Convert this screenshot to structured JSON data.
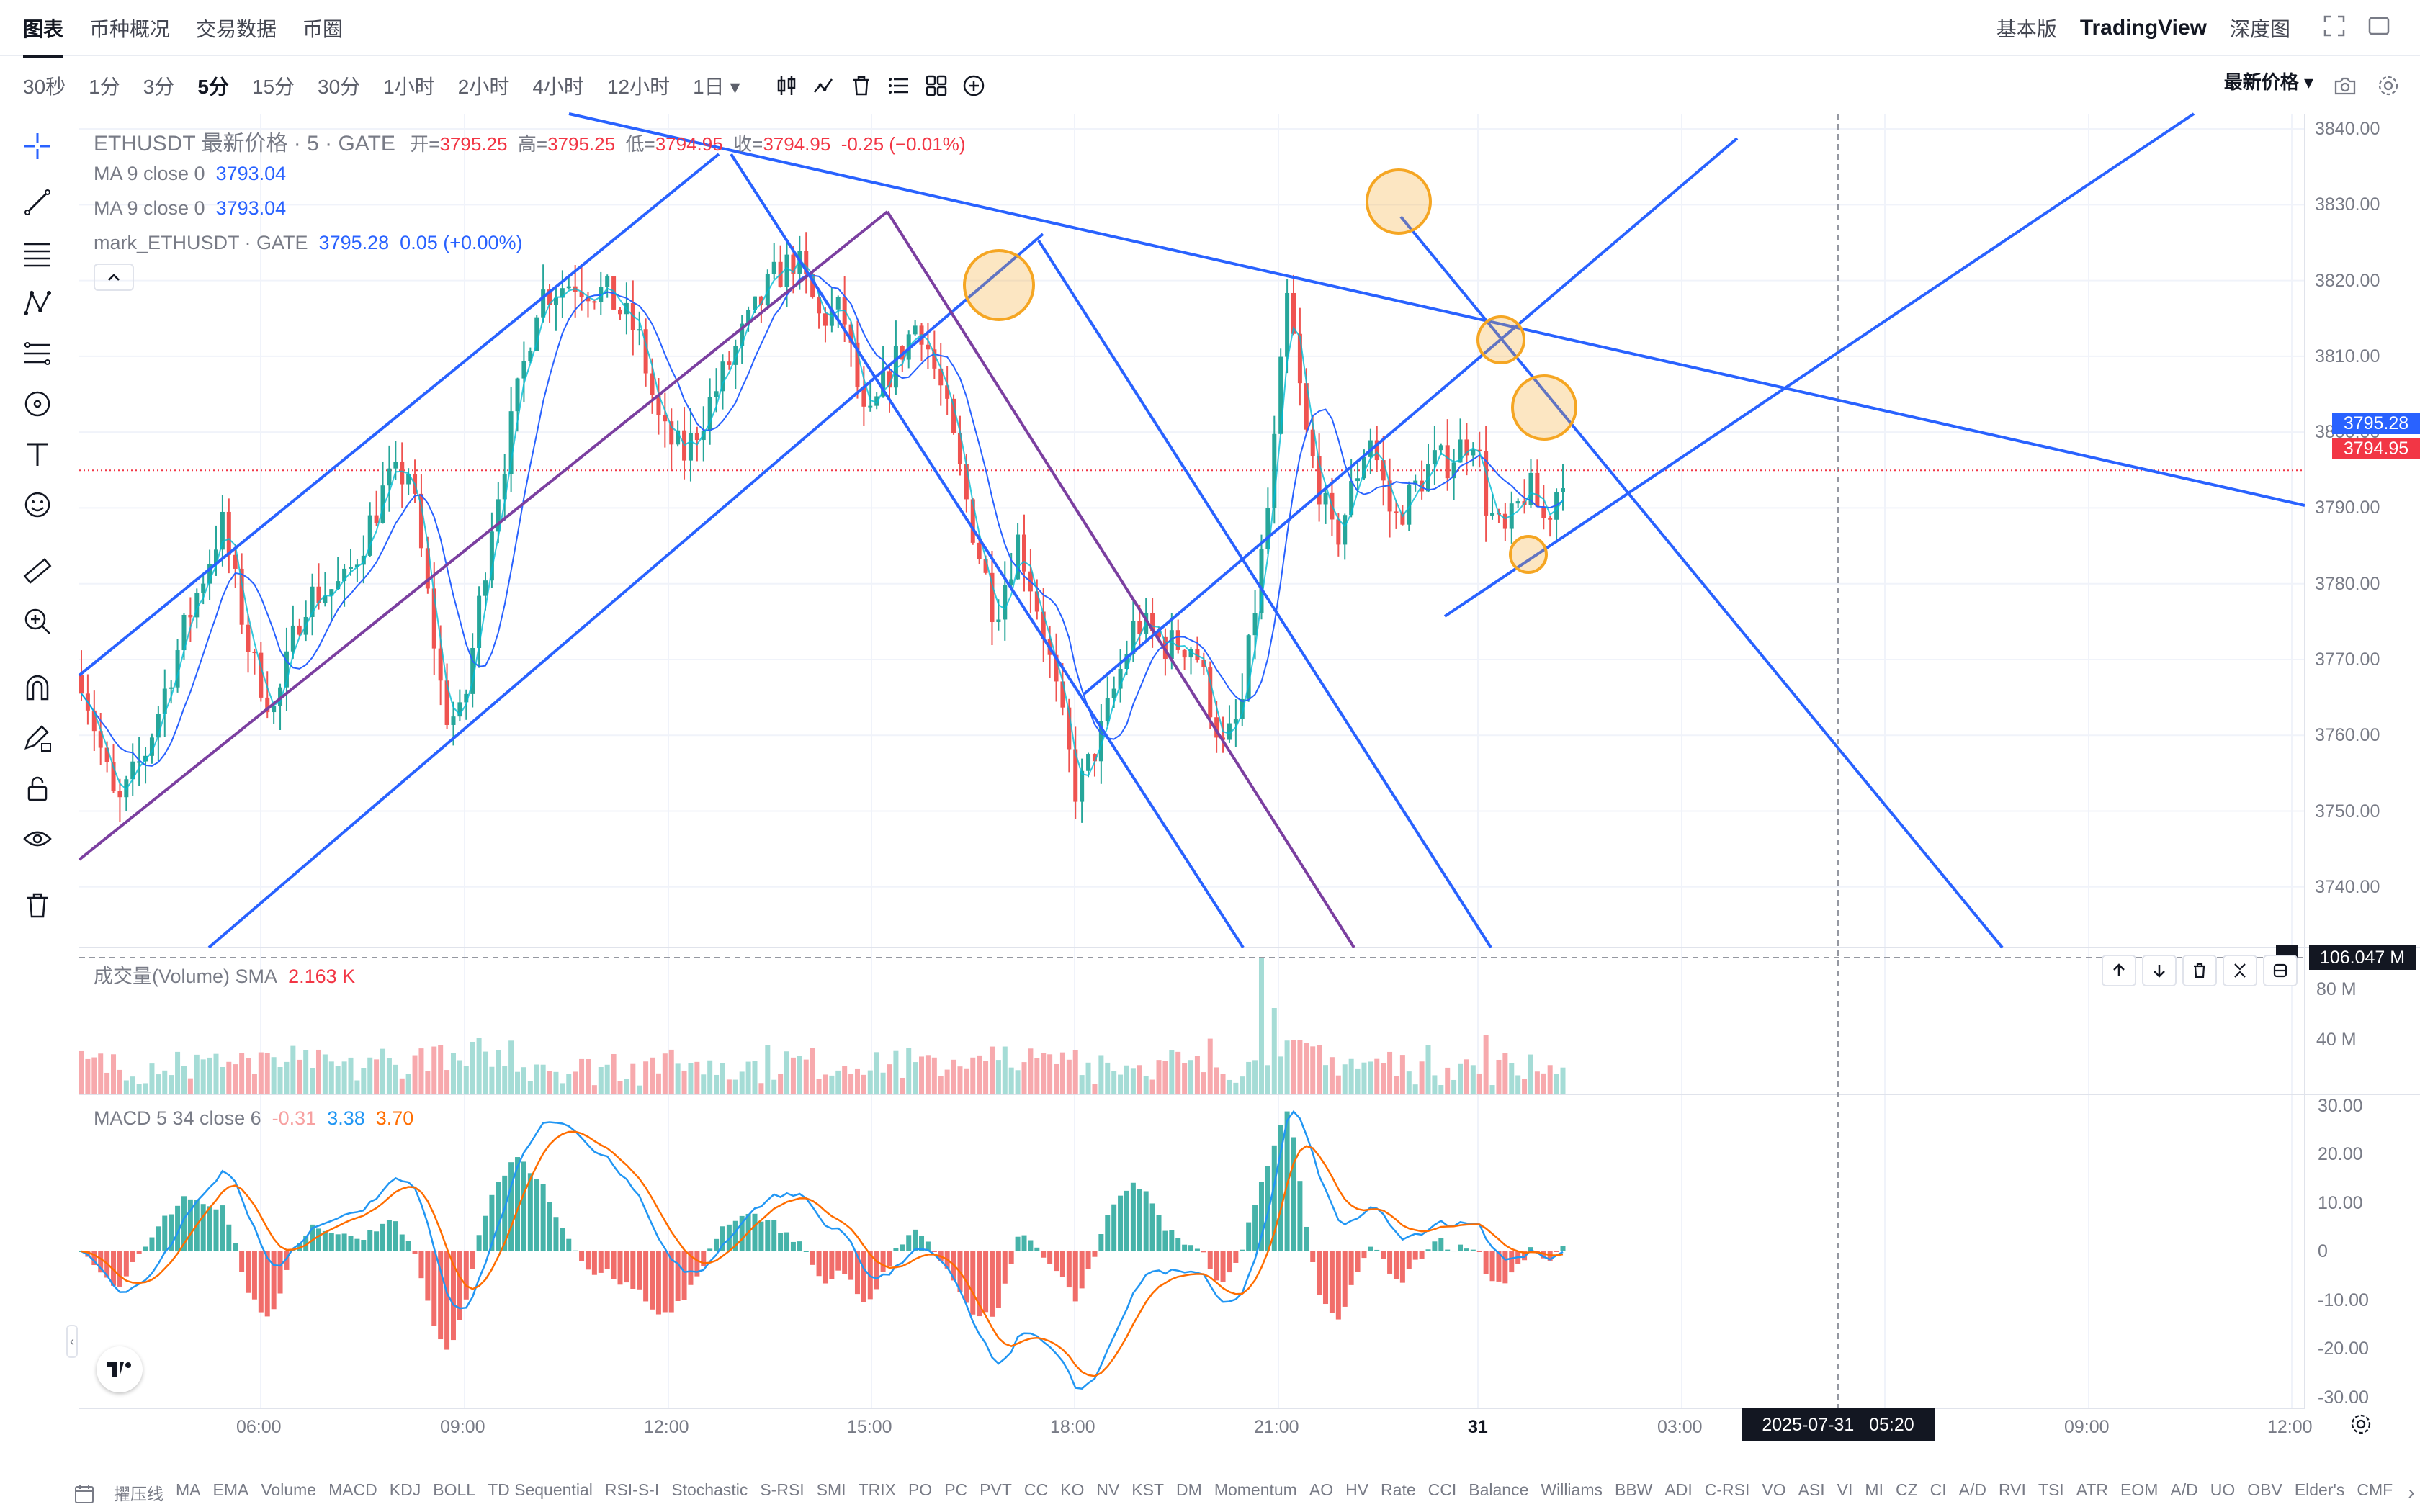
{
  "top_nav": {
    "items": [
      "图表",
      "币种概况",
      "交易数据",
      "币圈"
    ],
    "right": [
      "基本版",
      "TradingView",
      "深度图"
    ]
  },
  "timeframes": {
    "items": [
      "30秒",
      "1分",
      "3分",
      "5分",
      "15分",
      "30分",
      "1小时",
      "2小时",
      "4小时",
      "12小时",
      "1日 ▾"
    ],
    "selected": "5分"
  },
  "toolbar_right": {
    "price_type": "最新价格 ▾"
  },
  "legend": {
    "symbol": "ETHUSDT 最新价格 · 5 · GATE",
    "open_label": "开=",
    "open": "3795.25",
    "high_label": "高=",
    "high": "3795.25",
    "low_label": "低=",
    "low": "3794.95",
    "close_label": "收=",
    "close": "3794.95",
    "change": "-0.25 (−0.01%)",
    "ma1_label": "MA 9 close 0",
    "ma1_value": "3793.04",
    "ma2_label": "MA 9 close 0",
    "ma2_value": "3793.04",
    "mark_label": "mark_ETHUSDT · GATE",
    "mark_value": "3795.28",
    "mark_change": "0.05 (+0.00%)"
  },
  "price_axis": {
    "ticks": [
      "3840.00",
      "3830.00",
      "3820.00",
      "3810.00",
      "3800.00",
      "3790.00",
      "3780.00",
      "3770.00",
      "3760.00",
      "3750.00",
      "3740.00"
    ],
    "mark_price": "3795.28",
    "last_price": "3794.95",
    "mark_color": "#2962ff",
    "last_color": "#f23645"
  },
  "volume": {
    "label": "成交量(Volume) SMA",
    "value": "2.163 K",
    "ticks": [
      "80 M",
      "40 M"
    ],
    "crosshair_value": "106.047 M"
  },
  "macd": {
    "label": "MACD 5 34 close 6",
    "hist": "-0.31",
    "macd": "3.38",
    "signal": "3.70",
    "ticks": [
      "30.00",
      "20.00",
      "10.00",
      "0",
      "-10.00",
      "-20.00",
      "-30.00"
    ]
  },
  "time_axis": {
    "ticks": [
      "06:00",
      "09:00",
      "12:00",
      "15:00",
      "18:00",
      "21:00",
      "31",
      "03:00",
      "09:00",
      "12:00"
    ],
    "crosshair_label": "2025-07-31   05:20"
  },
  "bottom_indicators": [
    "擢压线",
    "MA",
    "EMA",
    "Volume",
    "MACD",
    "KDJ",
    "BOLL",
    "TD Sequential",
    "RSI-S-I",
    "Stochastic",
    "S-RSI",
    "SMI",
    "TRIX",
    "PO",
    "PC",
    "PVT",
    "CC",
    "KO",
    "NV",
    "KST",
    "DM",
    "Momentum",
    "AO",
    "HV",
    "Rate",
    "CCI",
    "Balance",
    "Williams",
    "BBW",
    "ADI",
    "C-RSI",
    "VO",
    "ASI",
    "VI",
    "MI",
    "CZ",
    "CI",
    "A/D",
    "RVI",
    "TSI",
    "ATR",
    "EOM",
    "A/D",
    "UO",
    "OBV",
    "Elder's",
    "CMF"
  ],
  "colors": {
    "up": "#26a69a",
    "down": "#ef5350",
    "line": "#2962ff",
    "purple": "#7b3fa0",
    "circle": "#f5a623"
  }
}
